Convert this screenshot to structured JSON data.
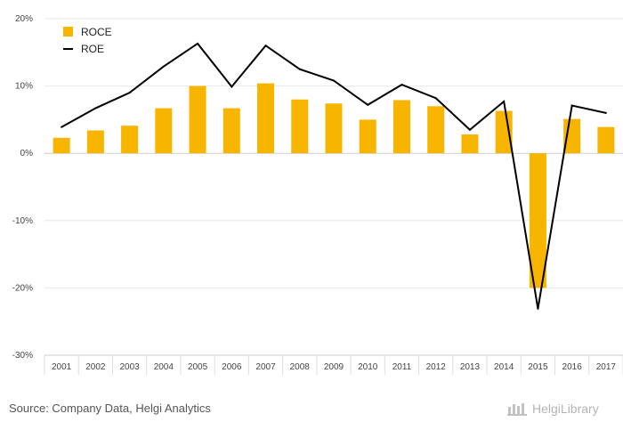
{
  "chart_data": {
    "type": "bar",
    "categories": [
      "2001",
      "2002",
      "2003",
      "2004",
      "2005",
      "2006",
      "2007",
      "2008",
      "2009",
      "2010",
      "2011",
      "2012",
      "2013",
      "2014",
      "2015",
      "2016",
      "2017"
    ],
    "series": [
      {
        "name": "ROCE",
        "kind": "bar",
        "color": "#F7B500",
        "values": [
          2.3,
          3.4,
          4.1,
          6.7,
          10.0,
          6.7,
          10.4,
          8.0,
          7.4,
          5.0,
          7.9,
          7.0,
          2.8,
          6.3,
          -20.0,
          5.1,
          3.9
        ]
      },
      {
        "name": "ROE",
        "kind": "line",
        "color": "#000000",
        "values": [
          3.9,
          6.7,
          9.0,
          12.9,
          16.3,
          9.9,
          16.0,
          12.5,
          10.8,
          7.2,
          10.2,
          8.2,
          3.5,
          7.7,
          -23.1,
          7.1,
          6.0
        ]
      }
    ],
    "y_ticks": [
      "20%",
      "10%",
      "0%",
      "-10%",
      "-20%",
      "-30%"
    ],
    "ylim": [
      -30,
      20
    ],
    "ytick_values": [
      20,
      10,
      0,
      -10,
      -20,
      -30
    ],
    "grid": true,
    "legend_position": "top-left",
    "title": "",
    "xlabel": "",
    "ylabel": ""
  },
  "footer": {
    "source_text": "Source: Company Data, Helgi Analytics",
    "brand_name": "HelgiLibrary"
  }
}
